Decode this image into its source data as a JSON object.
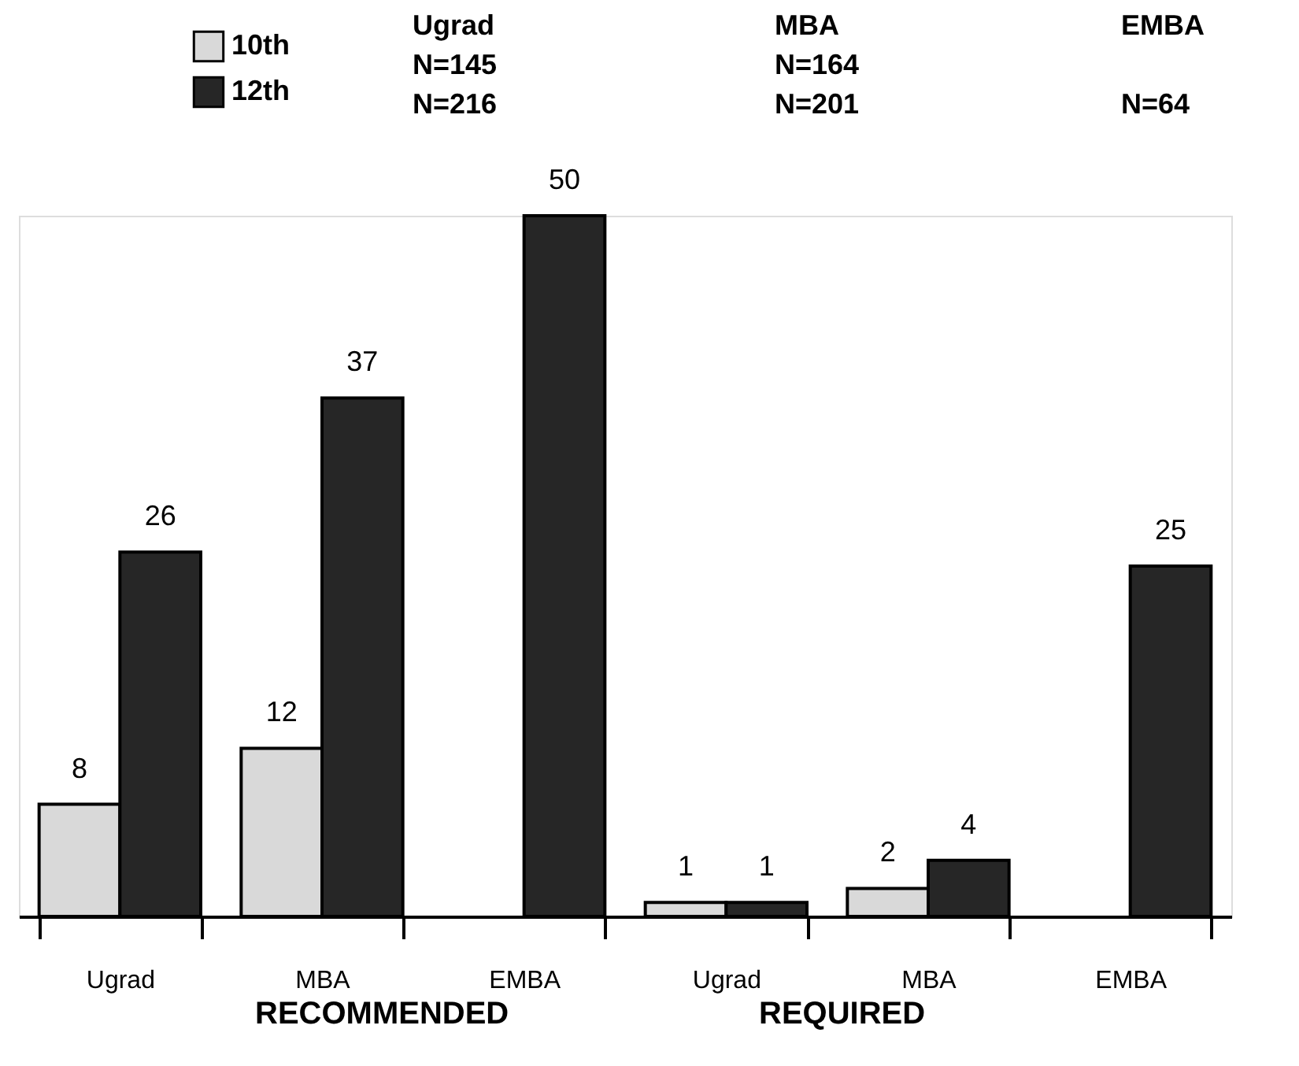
{
  "chart_data": {
    "type": "bar",
    "categories": [
      "Ugrad",
      "MBA",
      "EMBA",
      "Ugrad",
      "MBA",
      "EMBA"
    ],
    "series": [
      {
        "name": "10th",
        "color": "#d9d9d9",
        "values": [
          8,
          12,
          null,
          1,
          2,
          null
        ]
      },
      {
        "name": "12th",
        "color": "#262626",
        "values": [
          26,
          37,
          50,
          1,
          4,
          25
        ]
      }
    ],
    "data_labels": true,
    "legend": "top left",
    "grid": false,
    "annotations": [
      "Ugrad",
      "MBA",
      "EMBA",
      "N=145",
      "N=164",
      "N=216",
      "N=201",
      "N=64",
      "RECOMMENDED",
      "REQUIRED"
    ]
  }
}
